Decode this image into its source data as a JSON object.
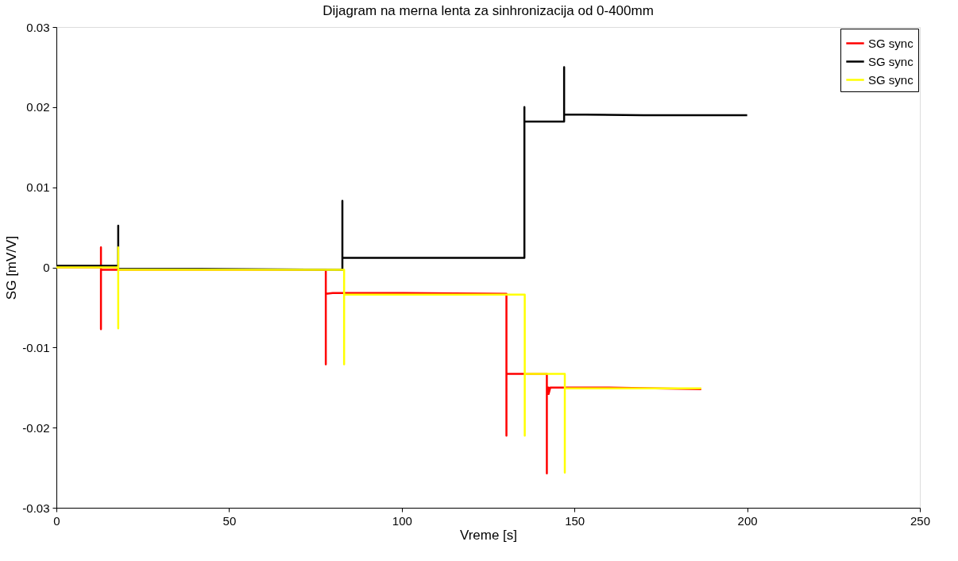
{
  "chart_data": {
    "type": "line",
    "title": "Dijagram na merna lenta za sinhronizacija od 0-400mm",
    "xlabel": "Vreme [s]",
    "ylabel": "SG [mV/V]",
    "xlim": [
      0,
      250
    ],
    "ylim": [
      -0.03,
      0.03
    ],
    "xticks": [
      0,
      50,
      100,
      150,
      200,
      250
    ],
    "yticks": [
      -0.03,
      -0.02,
      -0.01,
      0,
      0.01,
      0.02,
      0.03
    ],
    "grid": false,
    "legend": "top right",
    "marker": "none",
    "line_style": "solid",
    "series": [
      {
        "name": "SG sync",
        "color": "#ff0000",
        "x": [
          0,
          12.9,
          12.9,
          12.9,
          12.9,
          78,
          78,
          78,
          80,
          100,
          130.3,
          130.3,
          130.3,
          135,
          142,
          142,
          142,
          142.5,
          142.5,
          143,
          160,
          186.7
        ],
        "values": [
          0,
          0,
          0.0025,
          -0.0077,
          -0.0003,
          -0.0003,
          -0.0121,
          -0.0033,
          -0.0032,
          -0.0032,
          -0.0033,
          -0.021,
          -0.0133,
          -0.0133,
          -0.0133,
          -0.0257,
          -0.015,
          -0.015,
          -0.0158,
          -0.015,
          -0.015,
          -0.0152
        ]
      },
      {
        "name": "SG sync",
        "color": "#000000",
        "x": [
          0,
          10,
          17.9,
          17.9,
          17.9,
          40,
          82.8,
          82.8,
          82.8,
          100,
          135.5,
          135.5,
          135.5,
          147,
          147,
          147,
          170,
          200
        ],
        "values": [
          0.0002,
          0.0002,
          0.0002,
          0.0052,
          -0.0002,
          -0.0002,
          -0.0003,
          0.0083,
          0.0012,
          0.0012,
          0.0012,
          0.02,
          0.0182,
          0.0182,
          0.025,
          0.0191,
          0.019,
          0.019
        ]
      },
      {
        "name": "SG sync",
        "color": "#ffff00",
        "x": [
          0,
          17.9,
          17.9,
          17.9,
          17.9,
          40,
          83.3,
          83.3,
          83.3,
          100,
          135.6,
          135.6,
          135.6,
          147.2,
          147.2,
          147.2,
          147.2,
          160,
          186.7
        ],
        "values": [
          0,
          0,
          0.0025,
          -0.0076,
          -0.0003,
          -0.0003,
          -0.0003,
          -0.0121,
          -0.0034,
          -0.0034,
          -0.0034,
          -0.021,
          -0.0133,
          -0.0133,
          -0.0256,
          -0.0195,
          -0.0151,
          -0.0151,
          -0.0151
        ]
      }
    ]
  }
}
